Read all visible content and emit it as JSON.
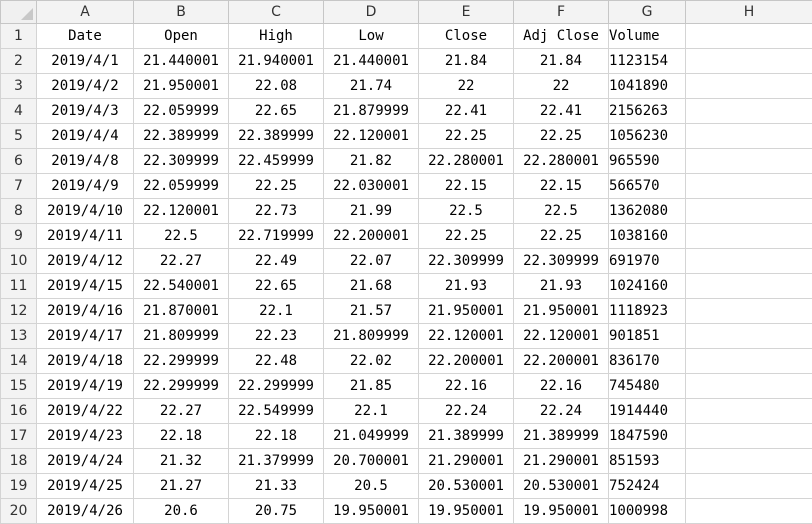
{
  "column_headers": [
    "A",
    "B",
    "C",
    "D",
    "E",
    "F",
    "G",
    "H"
  ],
  "header_row": {
    "number": "1",
    "cells": [
      "Date",
      "Open",
      "High",
      "Low",
      "Close",
      "Adj Close",
      "Volume"
    ]
  },
  "rows": [
    {
      "n": "2",
      "date": "2019/4/1",
      "open": "21.440001",
      "high": "21.940001",
      "low": "21.440001",
      "close": "21.84",
      "adj": "21.84",
      "vol": "1123154"
    },
    {
      "n": "3",
      "date": "2019/4/2",
      "open": "21.950001",
      "high": "22.08",
      "low": "21.74",
      "close": "22",
      "adj": "22",
      "vol": "1041890"
    },
    {
      "n": "4",
      "date": "2019/4/3",
      "open": "22.059999",
      "high": "22.65",
      "low": "21.879999",
      "close": "22.41",
      "adj": "22.41",
      "vol": "2156263"
    },
    {
      "n": "5",
      "date": "2019/4/4",
      "open": "22.389999",
      "high": "22.389999",
      "low": "22.120001",
      "close": "22.25",
      "adj": "22.25",
      "vol": "1056230"
    },
    {
      "n": "6",
      "date": "2019/4/8",
      "open": "22.309999",
      "high": "22.459999",
      "low": "21.82",
      "close": "22.280001",
      "adj": "22.280001",
      "vol": "965590"
    },
    {
      "n": "7",
      "date": "2019/4/9",
      "open": "22.059999",
      "high": "22.25",
      "low": "22.030001",
      "close": "22.15",
      "adj": "22.15",
      "vol": "566570"
    },
    {
      "n": "8",
      "date": "2019/4/10",
      "open": "22.120001",
      "high": "22.73",
      "low": "21.99",
      "close": "22.5",
      "adj": "22.5",
      "vol": "1362080"
    },
    {
      "n": "9",
      "date": "2019/4/11",
      "open": "22.5",
      "high": "22.719999",
      "low": "22.200001",
      "close": "22.25",
      "adj": "22.25",
      "vol": "1038160"
    },
    {
      "n": "10",
      "date": "2019/4/12",
      "open": "22.27",
      "high": "22.49",
      "low": "22.07",
      "close": "22.309999",
      "adj": "22.309999",
      "vol": "691970"
    },
    {
      "n": "11",
      "date": "2019/4/15",
      "open": "22.540001",
      "high": "22.65",
      "low": "21.68",
      "close": "21.93",
      "adj": "21.93",
      "vol": "1024160"
    },
    {
      "n": "12",
      "date": "2019/4/16",
      "open": "21.870001",
      "high": "22.1",
      "low": "21.57",
      "close": "21.950001",
      "adj": "21.950001",
      "vol": "1118923"
    },
    {
      "n": "13",
      "date": "2019/4/17",
      "open": "21.809999",
      "high": "22.23",
      "low": "21.809999",
      "close": "22.120001",
      "adj": "22.120001",
      "vol": "901851"
    },
    {
      "n": "14",
      "date": "2019/4/18",
      "open": "22.299999",
      "high": "22.48",
      "low": "22.02",
      "close": "22.200001",
      "adj": "22.200001",
      "vol": "836170"
    },
    {
      "n": "15",
      "date": "2019/4/19",
      "open": "22.299999",
      "high": "22.299999",
      "low": "21.85",
      "close": "22.16",
      "adj": "22.16",
      "vol": "745480"
    },
    {
      "n": "16",
      "date": "2019/4/22",
      "open": "22.27",
      "high": "22.549999",
      "low": "22.1",
      "close": "22.24",
      "adj": "22.24",
      "vol": "1914440"
    },
    {
      "n": "17",
      "date": "2019/4/23",
      "open": "22.18",
      "high": "22.18",
      "low": "21.049999",
      "close": "21.389999",
      "adj": "21.389999",
      "vol": "1847590"
    },
    {
      "n": "18",
      "date": "2019/4/24",
      "open": "21.32",
      "high": "21.379999",
      "low": "20.700001",
      "close": "21.290001",
      "adj": "21.290001",
      "vol": "851593"
    },
    {
      "n": "19",
      "date": "2019/4/25",
      "open": "21.27",
      "high": "21.33",
      "low": "20.5",
      "close": "20.530001",
      "adj": "20.530001",
      "vol": "752424"
    },
    {
      "n": "20",
      "date": "2019/4/26",
      "open": "20.6",
      "high": "20.75",
      "low": "19.950001",
      "close": "19.950001",
      "adj": "19.950001",
      "vol": "1000998"
    }
  ]
}
